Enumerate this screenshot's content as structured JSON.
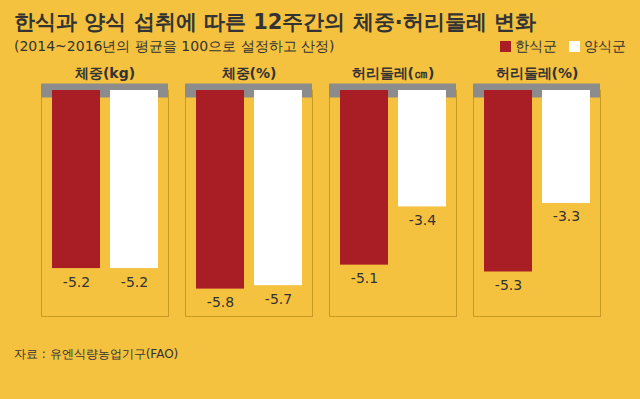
{
  "chart_data": {
    "type": "bar",
    "title": "한식과 양식 섭취에 따른 12주간의 체중·허리둘레 변화",
    "subtitle": "(2014~2016년의 평균을 100으로 설정하고 산정)",
    "caption": "자료 : 유엔식량농업기구(FAO)",
    "categories": [
      "체중(kg)",
      "체중(%)",
      "허리둘레(㎝)",
      "허리둘레(%)"
    ],
    "series": [
      {
        "name": "한식군",
        "color": "#a81e24",
        "values": [
          -5.2,
          -5.8,
          -5.1,
          -5.3
        ]
      },
      {
        "name": "양식군",
        "color": "#ffffff",
        "values": [
          -5.2,
          -5.7,
          -3.4,
          -3.3
        ]
      }
    ],
    "ylim": [
      -6.6,
      0
    ],
    "yticks": [],
    "data_labels": true,
    "tick_labels": false,
    "legend": "top-right"
  }
}
